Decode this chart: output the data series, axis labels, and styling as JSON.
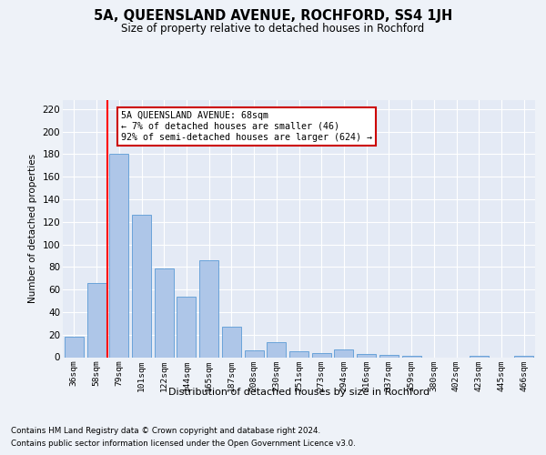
{
  "title1": "5A, QUEENSLAND AVENUE, ROCHFORD, SS4 1JH",
  "title2": "Size of property relative to detached houses in Rochford",
  "xlabel": "Distribution of detached houses by size in Rochford",
  "ylabel": "Number of detached properties",
  "categories": [
    "36sqm",
    "58sqm",
    "79sqm",
    "101sqm",
    "122sqm",
    "144sqm",
    "165sqm",
    "187sqm",
    "208sqm",
    "230sqm",
    "251sqm",
    "273sqm",
    "294sqm",
    "316sqm",
    "337sqm",
    "359sqm",
    "380sqm",
    "402sqm",
    "423sqm",
    "445sqm",
    "466sqm"
  ],
  "values": [
    18,
    66,
    180,
    126,
    79,
    54,
    86,
    27,
    6,
    13,
    5,
    4,
    7,
    3,
    2,
    1,
    0,
    0,
    1,
    0,
    1
  ],
  "bar_color": "#aec6e8",
  "bar_edge_color": "#5b9bd5",
  "ylim": [
    0,
    228
  ],
  "yticks": [
    0,
    20,
    40,
    60,
    80,
    100,
    120,
    140,
    160,
    180,
    200,
    220
  ],
  "red_line_x": 1.5,
  "annotation_line1": "5A QUEENSLAND AVENUE: 68sqm",
  "annotation_line2": "← 7% of detached houses are smaller (46)",
  "annotation_line3": "92% of semi-detached houses are larger (624) →",
  "annotation_box_color": "#ffffff",
  "annotation_box_edge_color": "#cc0000",
  "footer1": "Contains HM Land Registry data © Crown copyright and database right 2024.",
  "footer2": "Contains public sector information licensed under the Open Government Licence v3.0.",
  "background_color": "#eef2f8",
  "plot_background": "#e4eaf5"
}
